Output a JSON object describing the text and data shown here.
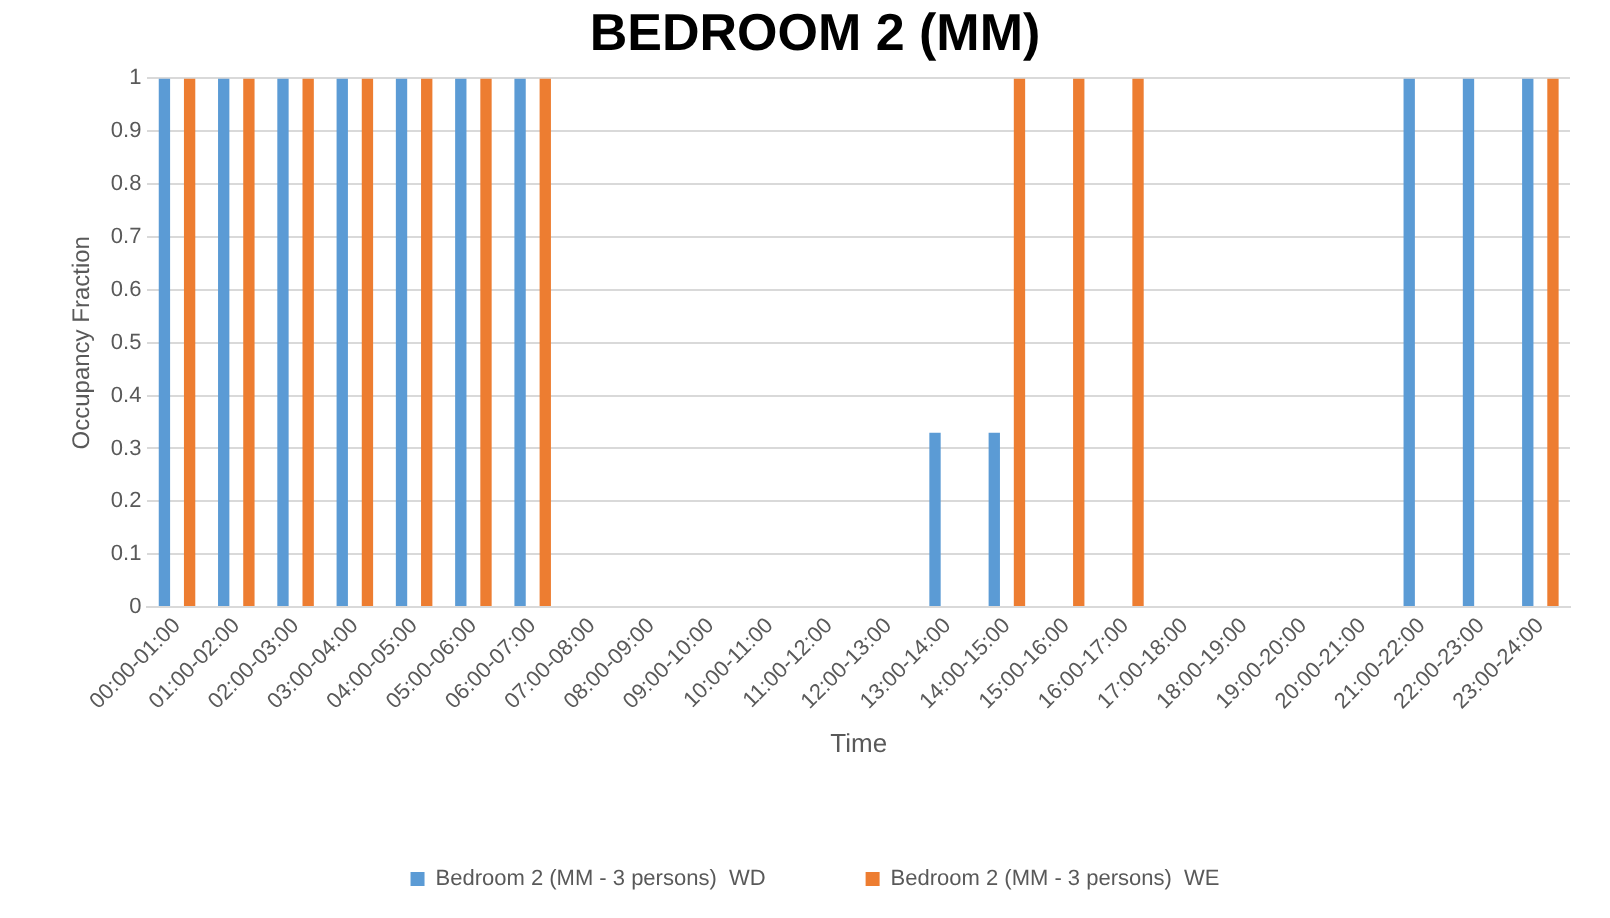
{
  "chart_data": {
    "type": "bar",
    "title": "BEDROOM 2 (MM)",
    "xlabel": "Time",
    "ylabel": "Occupancy Fraction",
    "categories": [
      "00:00-01:00",
      "01:00-02:00",
      "02:00-03:00",
      "03:00-04:00",
      "04:00-05:00",
      "05:00-06:00",
      "06:00-07:00",
      "07:00-08:00",
      "08:00-09:00",
      "09:00-10:00",
      "10:00-11:00",
      "11:00-12:00",
      "12:00-13:00",
      "13:00-14:00",
      "14:00-15:00",
      "15:00-16:00",
      "16:00-17:00",
      "17:00-18:00",
      "18:00-19:00",
      "19:00-20:00",
      "20:00-21:00",
      "21:00-22:00",
      "22:00-23:00",
      "23:00-24:00"
    ],
    "series": [
      {
        "name": "Bedroom 2 (MM - 3 persons)  WD",
        "color": "#5b9bd5",
        "values": [
          1,
          1,
          1,
          1,
          1,
          1,
          1,
          0,
          0,
          0,
          0,
          0,
          0,
          0.33,
          0.33,
          0,
          0,
          0,
          0,
          0,
          0,
          1,
          1,
          1
        ]
      },
      {
        "name": "Bedroom 2 (MM - 3 persons)  WE",
        "color": "#ed7d31",
        "values": [
          1,
          1,
          1,
          1,
          1,
          1,
          1,
          0,
          0,
          0,
          0,
          0,
          0,
          0,
          1,
          1,
          1,
          0,
          0,
          0,
          0,
          0,
          0,
          1
        ]
      }
    ],
    "ylim": [
      0,
      1
    ],
    "yticks": [
      0,
      0.1,
      0.2,
      0.3,
      0.4,
      0.5,
      0.6,
      0.7,
      0.8,
      0.9,
      1
    ],
    "grid": "y",
    "legend": "bottom"
  }
}
